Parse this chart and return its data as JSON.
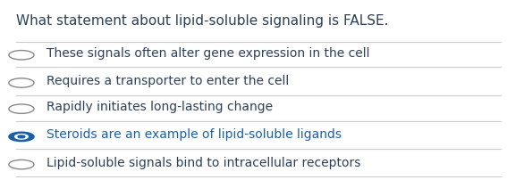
{
  "title": "What statement about lipid-soluble signaling is FALSE.",
  "title_color": "#2e4057",
  "title_fontsize": 11,
  "options": [
    "These signals often alter gene expression in the cell",
    "Requires a transporter to enter the cell",
    "Rapidly initiates long-lasting change",
    "Steroids are an example of lipid-soluble ligands",
    "Lipid-soluble signals bind to intracellular receptors"
  ],
  "option_color": "#2e4057",
  "selected_index": 3,
  "selected_color": "#1a5fa8",
  "radio_empty_color": "#888888",
  "radio_selected_color": "#1a5fa8",
  "divider_color": "#cccccc",
  "background_color": "#ffffff",
  "option_fontsize": 10
}
